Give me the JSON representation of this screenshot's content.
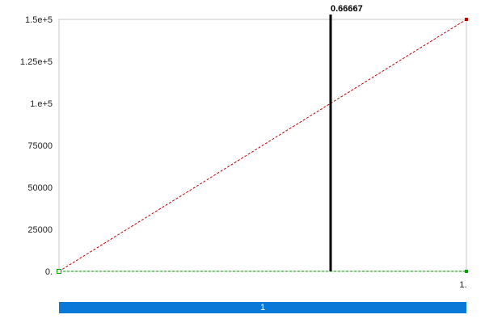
{
  "chart_data": {
    "type": "line",
    "x_ticks": [
      "1."
    ],
    "y_ticks": [
      "0.",
      "25000",
      "50000",
      "75000",
      "1.e+5",
      "1.25e+5",
      "1.5e+5"
    ],
    "xlim": [
      0,
      1
    ],
    "ylim": [
      0,
      150000
    ],
    "series": [
      {
        "color": "#c00000",
        "style": "dashed",
        "points": [
          [
            0,
            0
          ],
          [
            1,
            150000
          ]
        ]
      },
      {
        "color": "#00a000",
        "style": "dashed",
        "points": [
          [
            0,
            0
          ],
          [
            1,
            0
          ]
        ]
      }
    ],
    "probe": {
      "x": 0.66667,
      "label": "0.66667"
    },
    "grid": false
  },
  "timeline": {
    "label": "1"
  }
}
